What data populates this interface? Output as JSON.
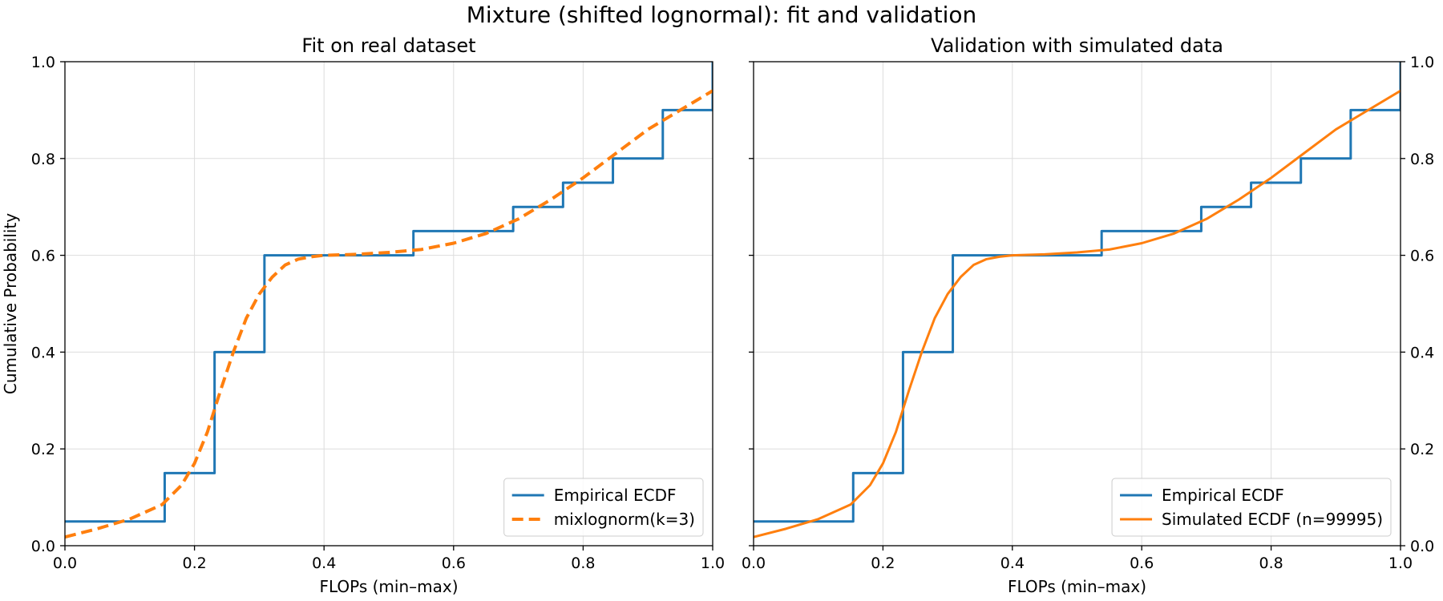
{
  "figure": {
    "suptitle": "Mixture (shifted lognormal): fit and validation"
  },
  "colors": {
    "ecdf": "#1f77b4",
    "fit": "#ff7f0e",
    "grid": "#dddddd",
    "axis": "#000000"
  },
  "chart_data": [
    {
      "type": "line",
      "title": "Fit on real dataset",
      "xlabel": "FLOPs (min–max)",
      "ylabel": "Cumulative Probability",
      "xlim": [
        0,
        1
      ],
      "ylim": [
        0,
        1
      ],
      "xticks": [
        "0.0",
        "0.2",
        "0.4",
        "0.6",
        "0.8",
        "1.0"
      ],
      "yticks": [
        "0.0",
        "0.2",
        "0.4",
        "0.6",
        "0.8",
        "1.0"
      ],
      "yaxis_side": "left",
      "grid": true,
      "legend_position": "lower right",
      "series": [
        {
          "name": "Empirical ECDF",
          "style": "step",
          "color": "#1f77b4",
          "x": [
            0,
            0.154,
            0.154,
            0.231,
            0.231,
            0.308,
            0.308,
            0.538,
            0.538,
            0.692,
            0.692,
            0.769,
            0.769,
            0.846,
            0.846,
            0.923,
            0.923,
            1.0,
            1.0
          ],
          "y": [
            0.05,
            0.05,
            0.15,
            0.15,
            0.4,
            0.4,
            0.6,
            0.6,
            0.65,
            0.65,
            0.7,
            0.7,
            0.75,
            0.75,
            0.8,
            0.8,
            0.9,
            0.9,
            1.0
          ]
        },
        {
          "name": "mixlognorm(k=3)",
          "style": "dashed",
          "color": "#ff7f0e",
          "x": [
            0,
            0.05,
            0.1,
            0.15,
            0.18,
            0.2,
            0.22,
            0.24,
            0.26,
            0.28,
            0.3,
            0.32,
            0.34,
            0.36,
            0.38,
            0.4,
            0.45,
            0.5,
            0.55,
            0.6,
            0.65,
            0.7,
            0.75,
            0.8,
            0.85,
            0.9,
            0.95,
            1.0
          ],
          "y": [
            0.018,
            0.035,
            0.055,
            0.085,
            0.125,
            0.17,
            0.235,
            0.32,
            0.4,
            0.47,
            0.52,
            0.555,
            0.58,
            0.592,
            0.597,
            0.6,
            0.602,
            0.606,
            0.612,
            0.625,
            0.645,
            0.675,
            0.715,
            0.76,
            0.81,
            0.86,
            0.9,
            0.94
          ]
        }
      ]
    },
    {
      "type": "line",
      "title": "Validation with simulated data",
      "xlabel": "FLOPs (min–max)",
      "ylabel": "",
      "xlim": [
        0,
        1
      ],
      "ylim": [
        0,
        1
      ],
      "xticks": [
        "0.0",
        "0.2",
        "0.4",
        "0.6",
        "0.8",
        "1.0"
      ],
      "yticks": [
        "0.0",
        "0.2",
        "0.4",
        "0.6",
        "0.8",
        "1.0"
      ],
      "yaxis_side": "right",
      "grid": true,
      "legend_position": "lower right",
      "series": [
        {
          "name": "Empirical ECDF",
          "style": "step",
          "color": "#1f77b4",
          "x": [
            0,
            0.154,
            0.154,
            0.231,
            0.231,
            0.308,
            0.308,
            0.538,
            0.538,
            0.692,
            0.692,
            0.769,
            0.769,
            0.846,
            0.846,
            0.923,
            0.923,
            1.0,
            1.0
          ],
          "y": [
            0.05,
            0.05,
            0.15,
            0.15,
            0.4,
            0.4,
            0.6,
            0.6,
            0.65,
            0.65,
            0.7,
            0.7,
            0.75,
            0.75,
            0.8,
            0.8,
            0.9,
            0.9,
            1.0
          ]
        },
        {
          "name": "Simulated ECDF (n=99995)",
          "style": "solid",
          "color": "#ff7f0e",
          "x": [
            0,
            0.05,
            0.1,
            0.15,
            0.18,
            0.2,
            0.22,
            0.24,
            0.26,
            0.28,
            0.3,
            0.32,
            0.34,
            0.36,
            0.38,
            0.4,
            0.45,
            0.5,
            0.55,
            0.6,
            0.65,
            0.7,
            0.75,
            0.8,
            0.85,
            0.9,
            0.95,
            1.0
          ],
          "y": [
            0.018,
            0.035,
            0.055,
            0.085,
            0.125,
            0.17,
            0.235,
            0.32,
            0.4,
            0.47,
            0.52,
            0.555,
            0.58,
            0.592,
            0.597,
            0.6,
            0.602,
            0.606,
            0.612,
            0.625,
            0.645,
            0.675,
            0.715,
            0.76,
            0.81,
            0.86,
            0.9,
            0.94
          ]
        }
      ]
    }
  ]
}
